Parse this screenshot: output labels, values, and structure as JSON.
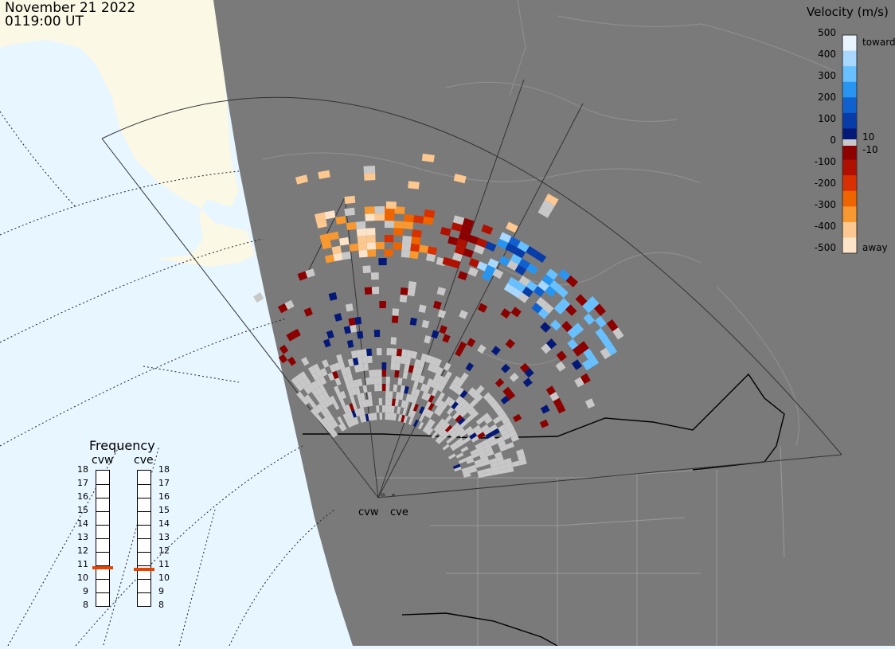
{
  "header": {
    "date": "November 21 2022",
    "time": "0119:00 UT"
  },
  "legend": {
    "title": "Velocity (m/s)",
    "ticks": [
      "500",
      "400",
      "300",
      "200",
      "100",
      "0",
      "-100",
      "-200",
      "-300",
      "-400",
      "-500"
    ],
    "labels": {
      "toward": "toward",
      "away": "away",
      "pos10": "10",
      "neg10": "-10"
    },
    "colors": [
      "#e8f4ff",
      "#a8d8ff",
      "#68c0ff",
      "#2896f0",
      "#1060d0",
      "#083ca8",
      "#041878",
      "#8c0000",
      "#b01000",
      "#d83000",
      "#ee6400",
      "#f89830",
      "#fcc890",
      "#fde4c8"
    ]
  },
  "frequency": {
    "title": "Frequency",
    "radars": [
      {
        "name": "cvw",
        "mhz": 10.8
      },
      {
        "name": "cve",
        "mhz": 10.7
      }
    ],
    "ticks": [
      "18",
      "17",
      "16",
      "15",
      "14",
      "13",
      "12",
      "11",
      "10",
      "9",
      "8"
    ],
    "marker_color": "#e84400"
  },
  "radars": {
    "site_labels": [
      "cvw",
      "cve"
    ]
  },
  "map": {
    "ocean_color": "#e8f6ff",
    "land_color": "#fbf8e6",
    "night_color": "#7a7a7a",
    "ground_scatter_color": "#c8c8c8"
  }
}
